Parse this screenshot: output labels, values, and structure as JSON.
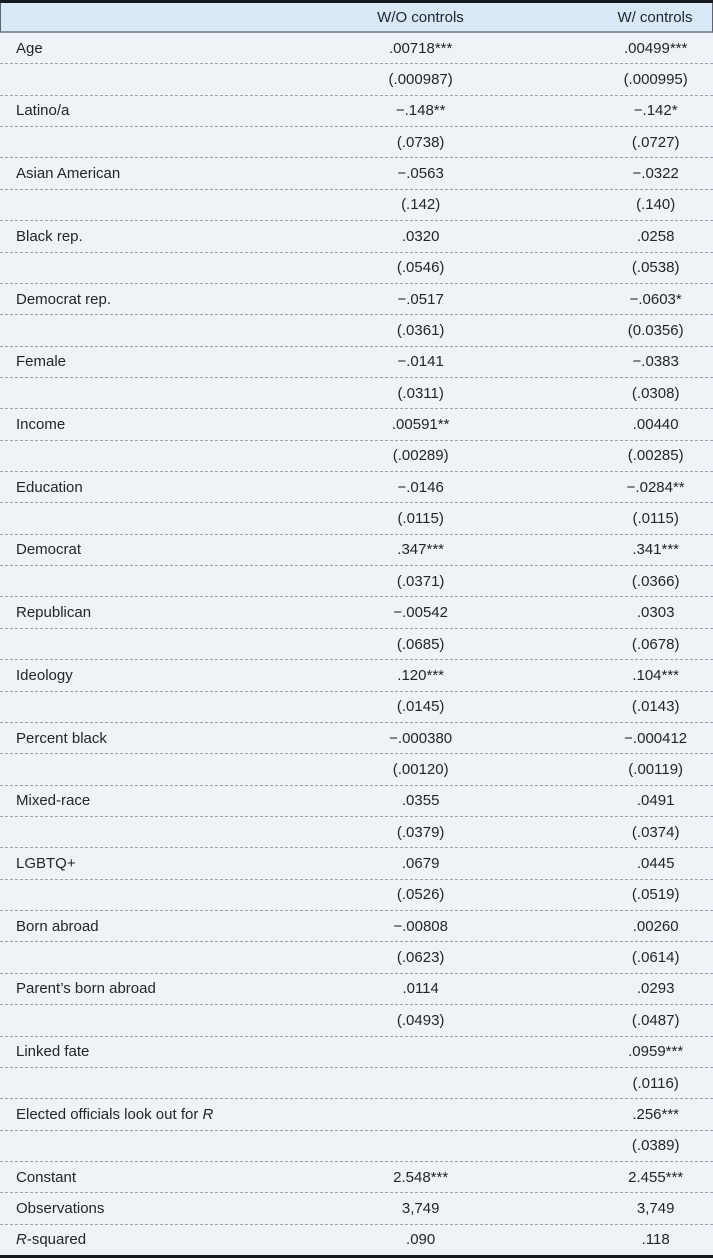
{
  "table": {
    "header": {
      "col_label": "",
      "col1": "W/O controls",
      "col2": "W/ controls"
    },
    "colors": {
      "header_bg": "#d9e8f7",
      "body_bg": "#eff3f8",
      "heavy_rule": "#16191d",
      "header_rule": "#8b939c",
      "dashed_rule": "#99a3ad",
      "text": "#22262a"
    },
    "rows": [
      {
        "label_pre": "Age",
        "values": [
          ".00718***",
          ".00499***"
        ],
        "ses": [
          "(.000987)",
          "(.000995)"
        ]
      },
      {
        "label_pre": "Latino/a",
        "values": [
          "−.148**",
          "−.142*"
        ],
        "ses": [
          "(.0738)",
          "(.0727)"
        ]
      },
      {
        "label_pre": "Asian American",
        "values": [
          "−.0563",
          "−.0322"
        ],
        "ses": [
          "(.142)",
          "(.140)"
        ]
      },
      {
        "label_pre": "Black rep.",
        "values": [
          ".0320",
          ".0258"
        ],
        "ses": [
          "(.0546)",
          "(.0538)"
        ]
      },
      {
        "label_pre": "Democrat rep.",
        "values": [
          "−.0517",
          "−.0603*"
        ],
        "ses": [
          "(.0361)",
          "(0.0356)"
        ]
      },
      {
        "label_pre": "Female",
        "values": [
          "−.0141",
          "−.0383"
        ],
        "ses": [
          "(.0311)",
          "(.0308)"
        ]
      },
      {
        "label_pre": "Income",
        "values": [
          ".00591**",
          ".00440"
        ],
        "ses": [
          "(.00289)",
          "(.00285)"
        ]
      },
      {
        "label_pre": "Education",
        "values": [
          "−.0146",
          "−.0284**"
        ],
        "ses": [
          "(.0115)",
          "(.0115)"
        ]
      },
      {
        "label_pre": "Democrat",
        "values": [
          ".347***",
          ".341***"
        ],
        "ses": [
          "(.0371)",
          "(.0366)"
        ]
      },
      {
        "label_pre": "Republican",
        "values": [
          "−.00542",
          ".0303"
        ],
        "ses": [
          "(.0685)",
          "(.0678)"
        ]
      },
      {
        "label_pre": "Ideology",
        "values": [
          ".120***",
          ".104***"
        ],
        "ses": [
          "(.0145)",
          "(.0143)"
        ]
      },
      {
        "label_pre": "Percent black",
        "values": [
          "−.000380",
          "−.000412"
        ],
        "ses": [
          "(.00120)",
          "(.00119)"
        ]
      },
      {
        "label_pre": "Mixed-race",
        "values": [
          ".0355",
          ".0491"
        ],
        "ses": [
          "(.0379)",
          "(.0374)"
        ]
      },
      {
        "label_pre": "LGBTQ+",
        "values": [
          ".0679",
          ".0445"
        ],
        "ses": [
          "(.0526)",
          "(.0519)"
        ]
      },
      {
        "label_pre": "Born abroad",
        "values": [
          "−.00808",
          ".00260"
        ],
        "ses": [
          "(.0623)",
          "(.0614)"
        ]
      },
      {
        "label_pre": "Parent’s born abroad",
        "values": [
          ".0114",
          ".0293"
        ],
        "ses": [
          "(.0493)",
          "(.0487)"
        ]
      },
      {
        "label_pre": "Linked fate",
        "values": [
          "",
          ".0959***"
        ],
        "ses": [
          "",
          "(.0116)"
        ]
      },
      {
        "label_pre": "Elected officials look out for ",
        "label_em": "R",
        "values": [
          "",
          ".256***"
        ],
        "ses": [
          "",
          "(.0389)"
        ]
      },
      {
        "label_pre": "Constant",
        "values": [
          "2.548***",
          "2.455***"
        ]
      },
      {
        "label_pre": "Observations",
        "values": [
          "3,749",
          "3,749"
        ]
      },
      {
        "label_em": "R",
        "label_post": "-squared",
        "values": [
          ".090",
          ".118"
        ]
      }
    ]
  }
}
